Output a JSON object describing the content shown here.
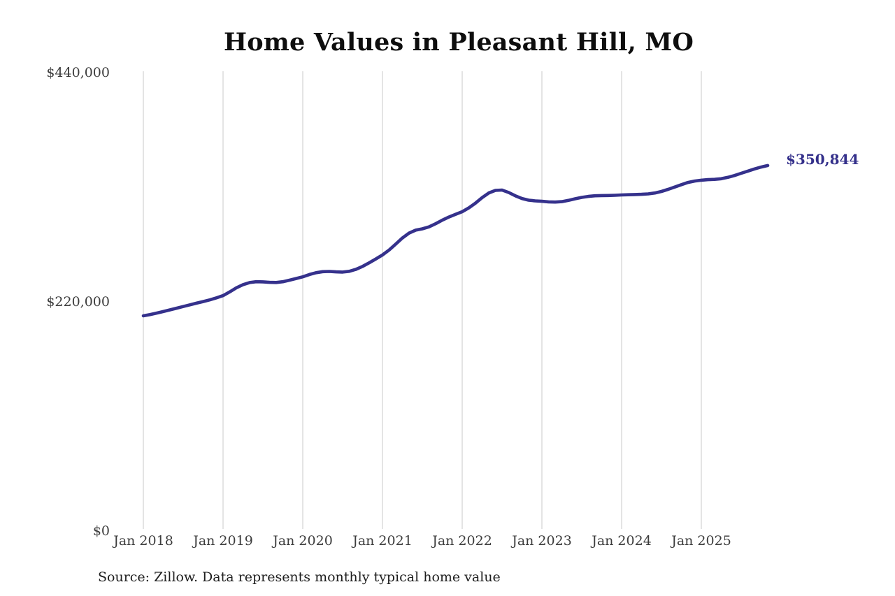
{
  "chart_data": {
    "type": "line",
    "title": "Home Values in Pleasant Hill, MO",
    "x_tick_labels": [
      "Jan 2018",
      "Jan 2019",
      "Jan 2020",
      "Jan 2021",
      "Jan 2022",
      "Jan 2023",
      "Jan 2024",
      "Jan 2025"
    ],
    "y_ticks": [
      {
        "label": "$0",
        "value": 0
      },
      {
        "label": "$220,000",
        "value": 220000
      },
      {
        "label": "$440,000",
        "value": 440000
      }
    ],
    "ylim": [
      0,
      440000
    ],
    "x_start_month": "Jan 2018",
    "x_end_month": "Nov 2025",
    "monthly_values": [
      206600,
      207800,
      209200,
      210700,
      212300,
      213900,
      215500,
      217100,
      218700,
      220300,
      221900,
      223800,
      226000,
      229500,
      233500,
      236500,
      238500,
      239300,
      239200,
      238700,
      238600,
      239300,
      240800,
      242400,
      244000,
      246200,
      248000,
      249000,
      249200,
      248800,
      248600,
      249300,
      251200,
      254000,
      257500,
      261200,
      265000,
      269800,
      275500,
      281300,
      286000,
      288800,
      290100,
      292000,
      295000,
      298400,
      301400,
      304000,
      306500,
      310200,
      314800,
      320000,
      324500,
      327000,
      327300,
      325000,
      321800,
      319200,
      317600,
      316900,
      316500,
      316000,
      315800,
      316200,
      317400,
      318900,
      320300,
      321200,
      321800,
      322000,
      322100,
      322300,
      322600,
      322800,
      323000,
      323200,
      323600,
      324500,
      326000,
      328000,
      330200,
      332500,
      334600,
      336000,
      336800,
      337300,
      337600,
      338200,
      339500,
      341300,
      343400,
      345500,
      347600,
      349400,
      350844
    ],
    "latest_value_label": "$350,844",
    "line_color": "#35318c",
    "gridlines": "vertical-yearly",
    "legend": "none"
  },
  "source_note": "Source: Zillow. Data represents monthly typical home value"
}
